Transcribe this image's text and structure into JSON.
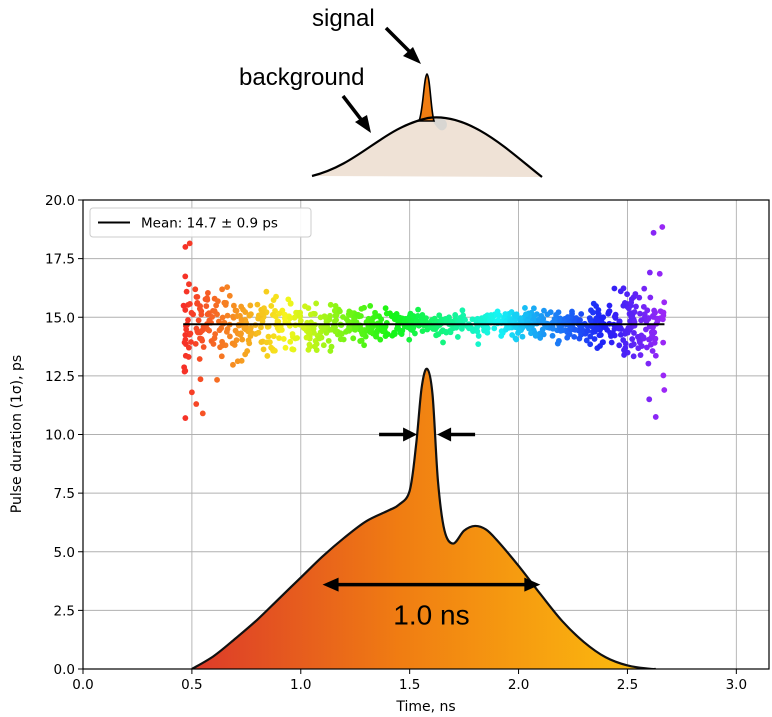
{
  "top_diagram": {
    "signal_label": "signal",
    "background_label": "background",
    "peak_color": "#f07d12",
    "background_fill": "#efe2d6"
  },
  "chart_data": {
    "type": "scatter",
    "xlabel": "Time, ns",
    "ylabel": "Pulse duration (1σ), ps",
    "xlim": [
      0.0,
      3.15
    ],
    "ylim": [
      0.0,
      20.0
    ],
    "xticks": [
      0.0,
      0.5,
      1.0,
      1.5,
      2.0,
      2.5,
      3.0
    ],
    "xtick_labels": [
      "0.0",
      "0.5",
      "1.0",
      "1.5",
      "2.0",
      "2.5",
      "3.0"
    ],
    "yticks": [
      0.0,
      2.5,
      5.0,
      7.5,
      10.0,
      12.5,
      15.0,
      17.5,
      20.0
    ],
    "ytick_labels": [
      "0.0",
      "2.5",
      "5.0",
      "7.5",
      "10.0",
      "12.5",
      "15.0",
      "17.5",
      "20.0"
    ],
    "grid": true,
    "legend": {
      "label": "Mean: 14.7 ± 0.9 ps",
      "placement": "top-left"
    },
    "mean_line": {
      "y": 14.7,
      "x_start": 0.46,
      "x_end": 2.67,
      "color": "#000000"
    },
    "scatter": {
      "x_range": [
        0.46,
        2.67
      ],
      "n_points": 950,
      "center": 14.7,
      "colormap": "rainbow",
      "spread_profile": {
        "x": [
          0.46,
          0.7,
          1.0,
          1.3,
          1.6,
          2.0,
          2.3,
          2.45,
          2.6,
          2.67
        ],
        "sd": [
          1.9,
          1.25,
          0.85,
          0.55,
          0.4,
          0.45,
          0.6,
          0.95,
          1.6,
          2.0
        ]
      },
      "outliers": [
        {
          "x": 0.47,
          "y": 18.0
        },
        {
          "x": 0.49,
          "y": 18.15
        },
        {
          "x": 0.47,
          "y": 10.7
        },
        {
          "x": 0.5,
          "y": 11.8
        },
        {
          "x": 0.52,
          "y": 11.3
        },
        {
          "x": 0.55,
          "y": 10.9
        },
        {
          "x": 2.62,
          "y": 18.6
        },
        {
          "x": 2.66,
          "y": 18.85
        },
        {
          "x": 2.63,
          "y": 10.75
        },
        {
          "x": 2.6,
          "y": 11.5
        }
      ]
    },
    "pulse_profile": {
      "x": [
        0.5,
        0.6,
        0.7,
        0.8,
        0.9,
        1.0,
        1.1,
        1.2,
        1.3,
        1.4,
        1.45,
        1.5,
        1.53,
        1.555,
        1.58,
        1.605,
        1.63,
        1.66,
        1.7,
        1.75,
        1.8,
        1.85,
        1.9,
        2.0,
        2.1,
        2.2,
        2.3,
        2.4,
        2.5,
        2.6,
        2.63
      ],
      "y": [
        0.0,
        0.55,
        1.3,
        2.1,
        3.0,
        3.9,
        4.8,
        5.6,
        6.3,
        6.75,
        7.0,
        7.6,
        9.6,
        12.0,
        12.8,
        11.7,
        8.0,
        5.9,
        5.35,
        5.9,
        6.1,
        5.95,
        5.5,
        4.4,
        3.2,
        2.05,
        1.15,
        0.5,
        0.15,
        0.01,
        0.0
      ],
      "gradient_colors": [
        "#dc3a2a",
        "#f07d12",
        "#fdc00e"
      ],
      "fwhm_label": "1.0 ns",
      "fwhm_arrow_x": [
        1.1,
        2.1
      ],
      "fwhm_arrow_y": 3.6,
      "peak_arrow_y": 10.0
    }
  }
}
